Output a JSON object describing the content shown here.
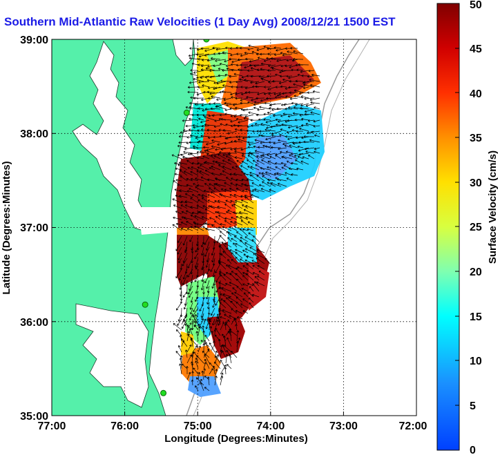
{
  "title": "Southern Mid-Atlantic Raw Velocities (1 Day Avg) 2008/12/21 1500 EST",
  "axes": {
    "xlabel": "Longitude (Degrees:Minutes)",
    "ylabel": "Latitude (Degrees:Minutes)",
    "xticks": [
      "77:00",
      "76:00",
      "75:00",
      "74:00",
      "73:00",
      "72:00"
    ],
    "yticks": [
      "39:00",
      "38:00",
      "37:00",
      "36:00",
      "35:00"
    ],
    "xlim": [
      -77,
      -72
    ],
    "ylim": [
      35,
      39
    ],
    "grid": "dotted"
  },
  "colorbar": {
    "label": "Surface Velocity (cm/s)",
    "ticks": [
      "50",
      "45",
      "40",
      "35",
      "30",
      "25",
      "20",
      "15",
      "10",
      "5",
      "0"
    ],
    "range": [
      0,
      50
    ],
    "colormap": "jet"
  },
  "colors": {
    "land": "#55f0aa",
    "title": "#1a1ae6",
    "station": "#22dd22",
    "bathymetry": "#9a9a9a"
  },
  "stations": [
    {
      "lon": -74.88,
      "lat": 39.0
    },
    {
      "lon": -75.15,
      "lat": 38.22
    },
    {
      "lon": -75.72,
      "lat": 36.18
    },
    {
      "lon": -75.47,
      "lat": 35.24
    }
  ]
}
